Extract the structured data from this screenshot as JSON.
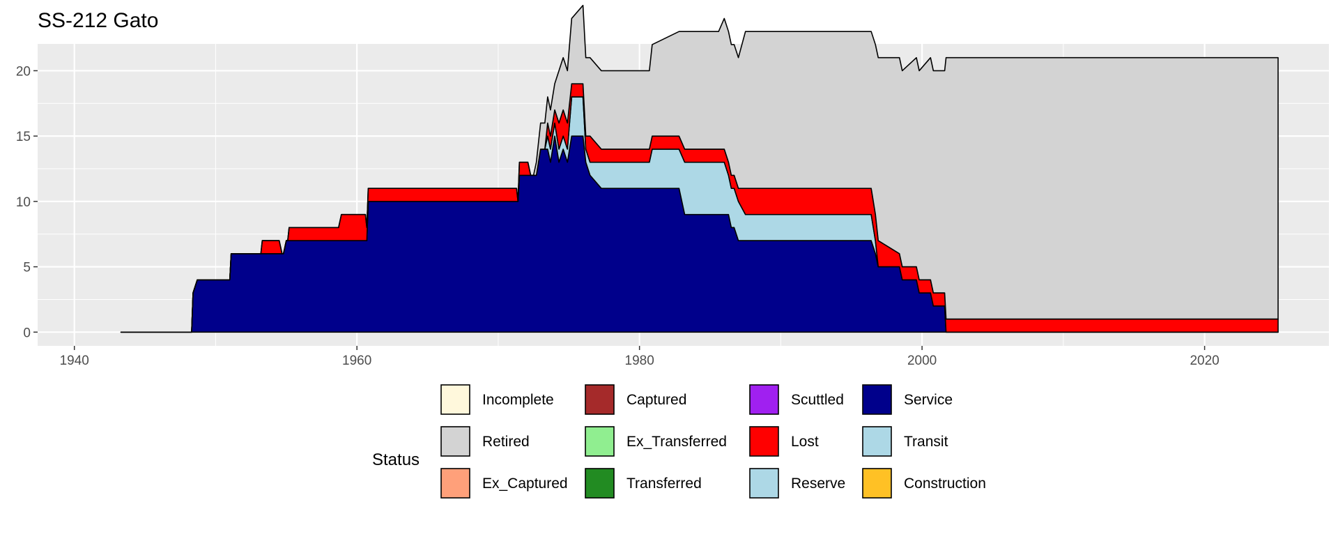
{
  "chart_data": {
    "type": "area",
    "stacked": true,
    "title": "SS-212 Gato",
    "xlabel": "",
    "ylabel": "",
    "xlim": [
      1937.4,
      2028.8
    ],
    "ylim": [
      -1.05,
      22.05
    ],
    "x_ticks": [
      1940,
      1960,
      1980,
      2000,
      2020
    ],
    "y_ticks": [
      0,
      5,
      10,
      15,
      20
    ],
    "grid": true,
    "legend": {
      "title": "Status",
      "position": "bottom",
      "entries": [
        {
          "label": "Incomplete",
          "color": "#FFF8DC"
        },
        {
          "label": "Retired",
          "color": "#D3D3D3"
        },
        {
          "label": "Ex_Captured",
          "color": "#FFA07A"
        },
        {
          "label": "Captured",
          "color": "#A52A2A"
        },
        {
          "label": "Ex_Transferred",
          "color": "#90EE90"
        },
        {
          "label": "Transferred",
          "color": "#228B22"
        },
        {
          "label": "Scuttled",
          "color": "#A020F0"
        },
        {
          "label": "Lost",
          "color": "#FF0000"
        },
        {
          "label": "Reserve",
          "color": "#ADD8E6"
        },
        {
          "label": "Service",
          "color": "#00008B"
        },
        {
          "label": "Transit",
          "color": "#ADD8E6"
        },
        {
          "label": "Construction",
          "color": "#FFC125"
        }
      ]
    },
    "series": [
      {
        "name": "Service",
        "color": "#00008B",
        "points": [
          [
            1943.3,
            0
          ],
          [
            1948.3,
            0
          ],
          [
            1948.4,
            3
          ],
          [
            1948.7,
            4
          ],
          [
            1951,
            4
          ],
          [
            1951.1,
            6
          ],
          [
            1954.8,
            6
          ],
          [
            1955,
            7
          ],
          [
            1960.6,
            7
          ],
          [
            1960.8,
            10
          ],
          [
            1971.4,
            10
          ],
          [
            1971.5,
            12
          ],
          [
            1972.7,
            12
          ],
          [
            1973,
            14
          ],
          [
            1973.5,
            14
          ],
          [
            1973.7,
            13
          ],
          [
            1974,
            15
          ],
          [
            1974.3,
            13
          ],
          [
            1974.6,
            14
          ],
          [
            1974.9,
            13
          ],
          [
            1975.2,
            15
          ],
          [
            1976,
            15
          ],
          [
            1976.2,
            13
          ],
          [
            1976.5,
            12
          ],
          [
            1977.3,
            11
          ],
          [
            1982.8,
            11
          ],
          [
            1983.2,
            9
          ],
          [
            1986,
            9
          ],
          [
            1986.5,
            8
          ],
          [
            1987,
            7
          ],
          [
            1996.4,
            7
          ],
          [
            1996.7,
            6
          ],
          [
            1996.9,
            5
          ],
          [
            1998.4,
            5
          ],
          [
            1998.6,
            4
          ],
          [
            1999.6,
            4
          ],
          [
            1999.8,
            3
          ],
          [
            2000.6,
            3
          ],
          [
            2000.8,
            2
          ],
          [
            2001.6,
            2
          ],
          [
            2001.7,
            0
          ],
          [
            2025.2,
            0
          ]
        ]
      },
      {
        "name": "Reserve",
        "color": "#ADD8E6",
        "points": [
          [
            1943.3,
            0
          ],
          [
            1973.3,
            0
          ],
          [
            1973.5,
            1
          ],
          [
            1974.9,
            1
          ],
          [
            1975.2,
            3
          ],
          [
            1976,
            3
          ],
          [
            1976.2,
            1
          ],
          [
            1976.5,
            1
          ],
          [
            1977.3,
            2
          ],
          [
            1980.7,
            2
          ],
          [
            1980.9,
            3
          ],
          [
            1982.8,
            3
          ],
          [
            1983.2,
            4
          ],
          [
            1985.6,
            4
          ],
          [
            1986.3,
            3
          ],
          [
            1986.7,
            3
          ],
          [
            1987.5,
            2
          ],
          [
            1996.4,
            2
          ],
          [
            1996.7,
            1
          ],
          [
            1996.9,
            0
          ],
          [
            2025.2,
            0
          ]
        ]
      },
      {
        "name": "Lost",
        "color": "#FF0000",
        "points": [
          [
            1943.3,
            0
          ],
          [
            1953.2,
            0
          ],
          [
            1953.3,
            1
          ],
          [
            1954.5,
            1
          ],
          [
            1954.7,
            0
          ],
          [
            1955.1,
            0
          ],
          [
            1955.2,
            1
          ],
          [
            1958.7,
            1
          ],
          [
            1958.9,
            2
          ],
          [
            1960.5,
            2
          ],
          [
            1960.7,
            1
          ],
          [
            1971.3,
            1
          ],
          [
            1971.4,
            0
          ],
          [
            1971.5,
            1
          ],
          [
            1972.1,
            1
          ],
          [
            1972.3,
            0
          ],
          [
            1972.7,
            0
          ],
          [
            1973,
            0
          ],
          [
            1973.5,
            1
          ],
          [
            1974,
            1
          ],
          [
            1974.3,
            2
          ],
          [
            1975.2,
            1
          ],
          [
            1976,
            1
          ],
          [
            1976.2,
            1
          ],
          [
            1976.5,
            2
          ],
          [
            1977.3,
            1
          ],
          [
            1980.7,
            1
          ],
          [
            1980.9,
            1
          ],
          [
            1982.8,
            1
          ],
          [
            1983.2,
            1
          ],
          [
            1985.6,
            1
          ],
          [
            1986.3,
            1
          ],
          [
            1986.7,
            1
          ],
          [
            1987.5,
            2
          ],
          [
            1996.4,
            2
          ],
          [
            1996.7,
            2
          ],
          [
            1996.9,
            2
          ],
          [
            1998.4,
            1
          ],
          [
            1999.6,
            1
          ],
          [
            2000.6,
            1
          ],
          [
            2001.7,
            1
          ],
          [
            2025.2,
            1
          ]
        ]
      },
      {
        "name": "Retired",
        "color": "#D3D3D3",
        "points": [
          [
            1943.3,
            0
          ],
          [
            1972.5,
            0
          ],
          [
            1972.7,
            1
          ],
          [
            1973,
            2
          ],
          [
            1973.5,
            2
          ],
          [
            1974,
            2
          ],
          [
            1974.3,
            4
          ],
          [
            1975.2,
            5
          ],
          [
            1976,
            6
          ],
          [
            1976.5,
            6
          ],
          [
            1980.9,
            7
          ],
          [
            1982.8,
            8
          ],
          [
            1983.2,
            9
          ],
          [
            1986,
            10
          ],
          [
            1987.5,
            12
          ],
          [
            1996.4,
            12
          ],
          [
            1996.7,
            13
          ],
          [
            1996.9,
            14
          ],
          [
            1998.4,
            15
          ],
          [
            1999.6,
            16
          ],
          [
            2000.6,
            17
          ],
          [
            2001.7,
            20
          ],
          [
            2025.2,
            20
          ]
        ]
      }
    ],
    "total_envelope_max": 21
  }
}
